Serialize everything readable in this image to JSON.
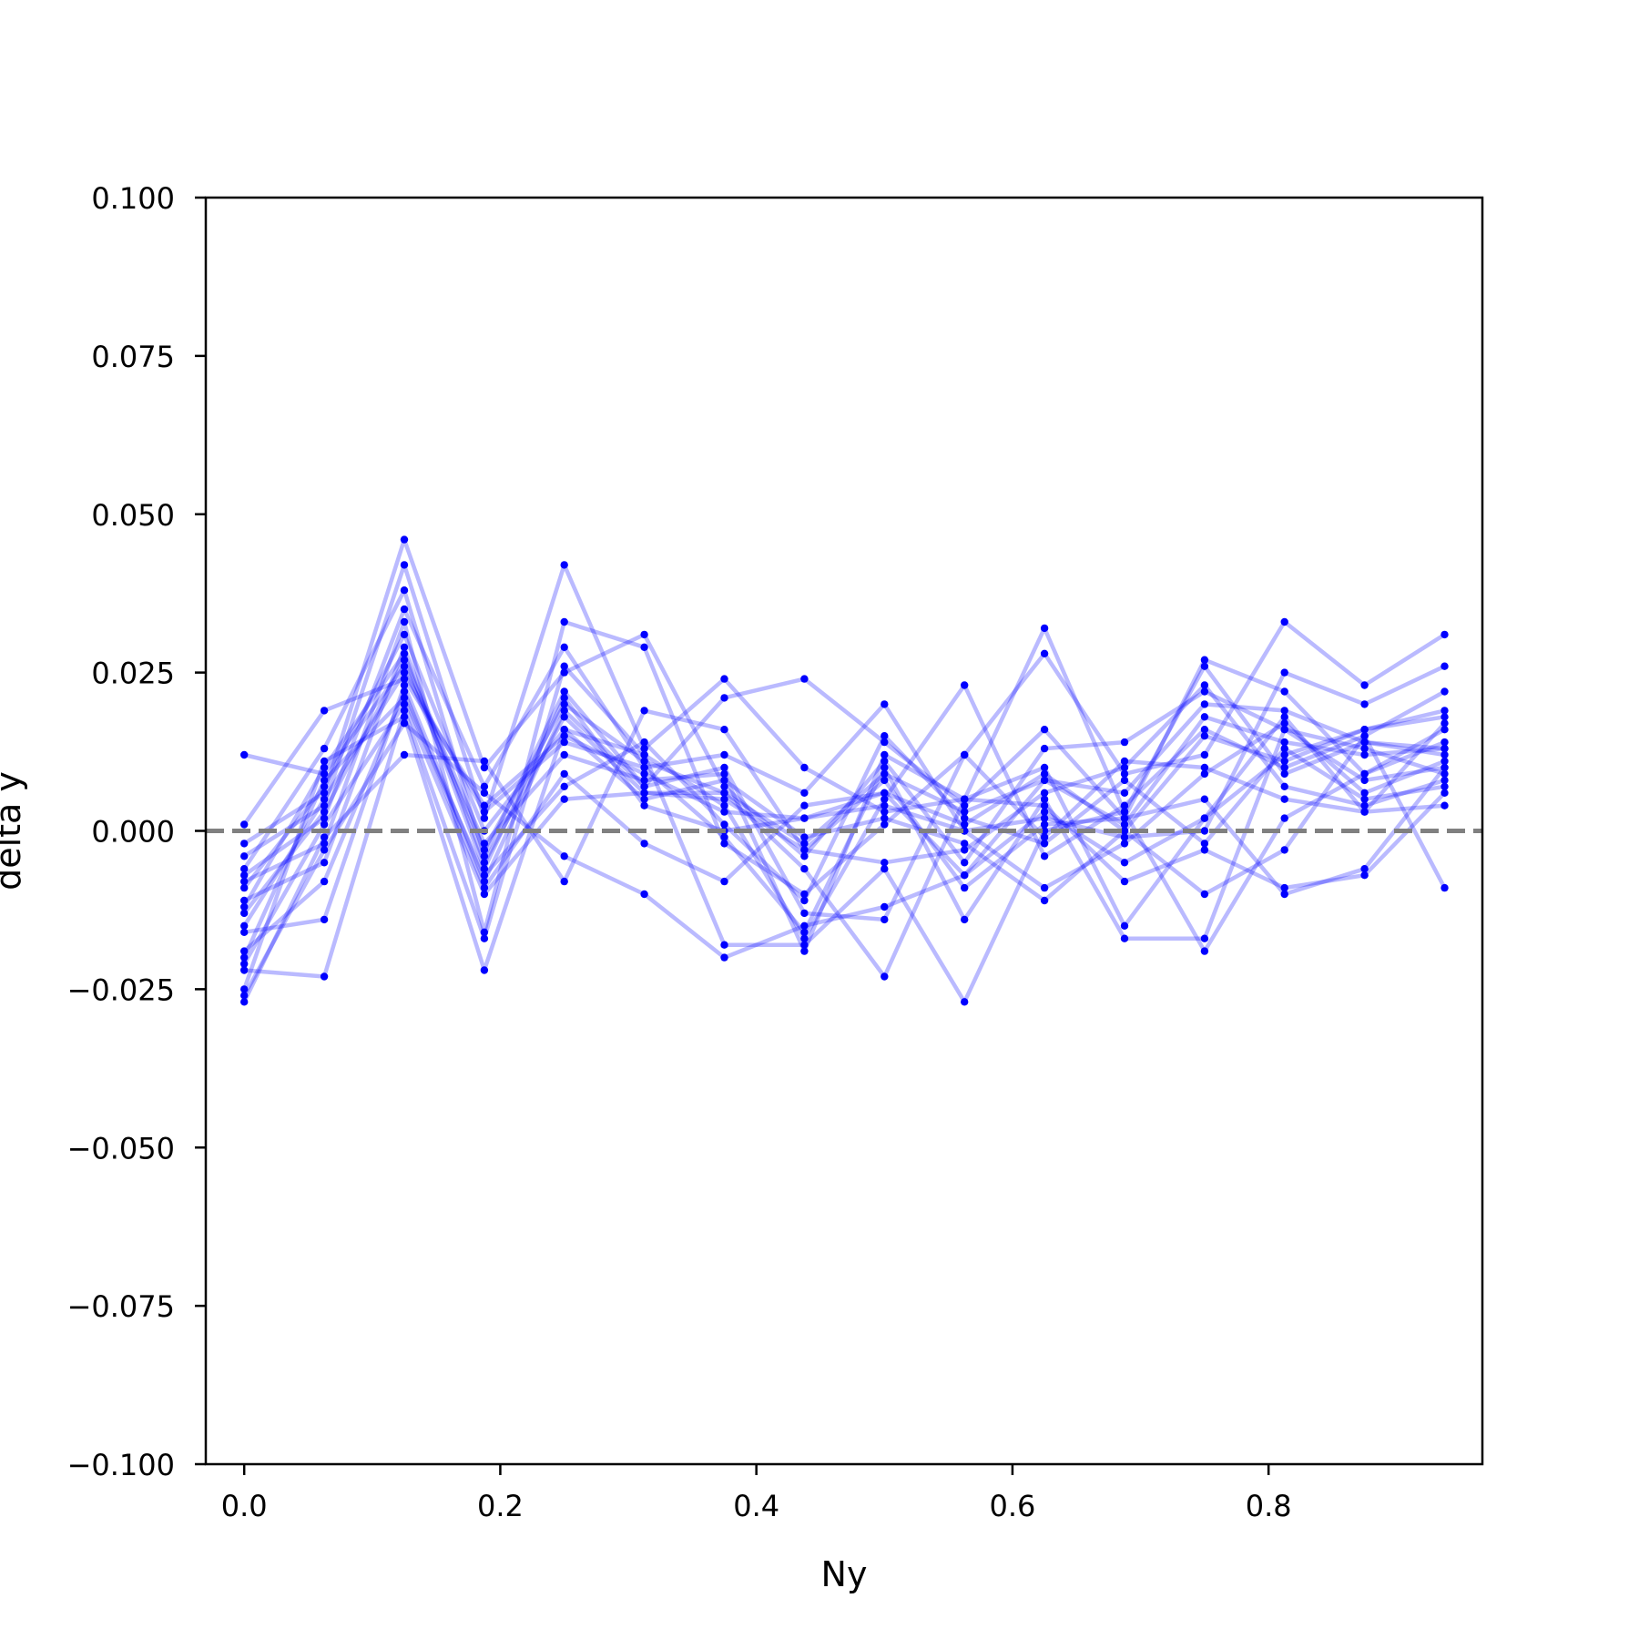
{
  "chart_data": {
    "type": "line",
    "title": "",
    "xlabel": "Ny",
    "ylabel": "delta y",
    "xlim": [
      -0.03,
      0.967
    ],
    "ylim": [
      -0.1,
      0.1
    ],
    "xticks": [
      "0.0",
      "0.2",
      "0.4",
      "0.6",
      "0.8"
    ],
    "xtick_values": [
      0.0,
      0.2,
      0.4,
      0.6,
      0.8
    ],
    "yticks": [
      "−0.100",
      "−0.075",
      "−0.050",
      "−0.025",
      "0.000",
      "0.025",
      "0.050",
      "0.075",
      "0.100"
    ],
    "ytick_values": [
      -0.1,
      -0.075,
      -0.05,
      -0.025,
      0.0,
      0.025,
      0.05,
      0.075,
      0.1
    ],
    "grid": false,
    "legend": "none",
    "reference_line": {
      "y": 0.0,
      "style": "dashed",
      "color": "#808080"
    },
    "line_color": "#0000ff",
    "line_alpha": 0.27,
    "marker_color": "#0000ff",
    "x": [
      0.0,
      0.0625,
      0.125,
      0.1875,
      0.25,
      0.3125,
      0.375,
      0.4375,
      0.5,
      0.5625,
      0.625,
      0.6875,
      0.75,
      0.8125,
      0.875,
      0.9375
    ],
    "series": [
      {
        "values": [
          0.012,
          0.009,
          0.026,
          -0.003,
          0.02,
          0.011,
          0.006,
          -0.002,
          0.009,
          0.003,
          0.008,
          0.001,
          0.018,
          0.014,
          0.012,
          0.013
        ]
      },
      {
        "values": [
          0.001,
          0.019,
          0.024,
          0.004,
          0.015,
          0.009,
          0.003,
          0.002,
          0.006,
          0.001,
          0.009,
          0.0,
          0.015,
          0.011,
          0.016,
          0.019
        ]
      },
      {
        "values": [
          -0.002,
          0.006,
          0.046,
          0.01,
          0.025,
          0.031,
          0.007,
          -0.004,
          0.011,
          -0.005,
          0.013,
          0.014,
          0.022,
          0.016,
          0.008,
          0.01
        ]
      },
      {
        "values": [
          -0.004,
          0.004,
          0.042,
          0.002,
          0.042,
          0.013,
          0.024,
          0.01,
          0.003,
          0.005,
          0.032,
          0.003,
          0.026,
          0.009,
          0.014,
          0.012
        ]
      },
      {
        "values": [
          -0.006,
          0.013,
          0.038,
          -0.004,
          0.022,
          0.007,
          0.021,
          0.024,
          0.014,
          0.004,
          0.016,
          0.002,
          0.027,
          0.022,
          0.009,
          0.014
        ]
      },
      {
        "values": [
          -0.007,
          0.002,
          0.035,
          0.007,
          0.029,
          0.01,
          0.012,
          0.006,
          0.02,
          0.0,
          0.002,
          -0.001,
          0.0,
          0.025,
          0.02,
          0.026
        ]
      },
      {
        "values": [
          -0.008,
          -0.002,
          0.033,
          -0.016,
          0.033,
          0.029,
          -0.002,
          -0.01,
          0.001,
          0.012,
          0.028,
          0.009,
          0.012,
          0.033,
          0.023,
          0.031
        ]
      },
      {
        "values": [
          -0.009,
          0.007,
          0.031,
          0.0,
          0.016,
          0.012,
          0.004,
          -0.017,
          0.005,
          0.023,
          -0.004,
          0.004,
          0.016,
          0.01,
          0.015,
          0.022
        ]
      },
      {
        "values": [
          -0.011,
          -0.005,
          0.029,
          -0.005,
          0.018,
          0.006,
          0.005,
          -0.003,
          -0.005,
          -0.003,
          0.006,
          0.01,
          0.023,
          0.007,
          0.004,
          0.008
        ]
      },
      {
        "values": [
          -0.012,
          0.01,
          0.028,
          -0.006,
          0.021,
          0.004,
          0.0,
          0.002,
          0.004,
          0.0,
          -0.009,
          -0.002,
          0.009,
          0.017,
          0.006,
          0.011
        ]
      },
      {
        "values": [
          -0.013,
          0.003,
          0.027,
          -0.002,
          0.012,
          0.008,
          0.009,
          -0.019,
          0.012,
          0.005,
          0.01,
          -0.015,
          0.002,
          0.012,
          0.016,
          0.018
        ]
      },
      {
        "values": [
          -0.015,
          0.005,
          0.025,
          0.003,
          0.014,
          0.01,
          -0.001,
          -0.016,
          0.01,
          -0.014,
          0.005,
          -0.017,
          -0.017,
          0.016,
          0.013,
          0.009
        ]
      },
      {
        "values": [
          -0.016,
          -0.014,
          0.023,
          -0.008,
          0.019,
          0.007,
          0.01,
          -0.013,
          -0.014,
          0.012,
          -0.001,
          0.011,
          0.01,
          0.005,
          0.003,
          0.017
        ]
      },
      {
        "values": [
          -0.019,
          -0.008,
          0.022,
          -0.009,
          0.009,
          -0.002,
          -0.008,
          0.004,
          0.006,
          -0.007,
          0.008,
          0.006,
          0.02,
          0.019,
          0.014,
          0.013
        ]
      },
      {
        "values": [
          -0.02,
          0.008,
          0.021,
          -0.007,
          0.007,
          0.014,
          0.001,
          -0.011,
          0.015,
          0.002,
          -0.002,
          0.008,
          -0.002,
          0.013,
          0.005,
          0.007
        ]
      },
      {
        "values": [
          -0.021,
          0.001,
          0.02,
          -0.01,
          0.005,
          0.006,
          0.006,
          -0.006,
          -0.023,
          0.005,
          0.004,
          -0.008,
          -0.003,
          -0.009,
          -0.007,
          0.006
        ]
      },
      {
        "values": [
          -0.022,
          -0.023,
          0.019,
          -0.017,
          0.026,
          0.012,
          -0.018,
          -0.018,
          -0.006,
          -0.027,
          0.0,
          0.003,
          -0.019,
          0.002,
          0.009,
          0.016
        ]
      },
      {
        "values": [
          -0.025,
          0.011,
          0.018,
          -0.022,
          0.016,
          0.005,
          0.008,
          -0.001,
          0.002,
          -0.002,
          -0.011,
          0.0,
          -0.01,
          -0.003,
          0.015,
          -0.009
        ]
      },
      {
        "values": [
          -0.026,
          -0.003,
          0.017,
          0.006,
          -0.004,
          -0.01,
          -0.02,
          -0.015,
          -0.012,
          -0.007,
          0.003,
          -0.005,
          0.002,
          0.018,
          0.003,
          0.004
        ]
      },
      {
        "values": [
          -0.027,
          -0.001,
          0.012,
          0.011,
          -0.008,
          0.019,
          0.016,
          -0.003,
          0.008,
          -0.009,
          0.001,
          0.002,
          0.005,
          -0.01,
          -0.006,
          0.01
        ]
      }
    ]
  }
}
